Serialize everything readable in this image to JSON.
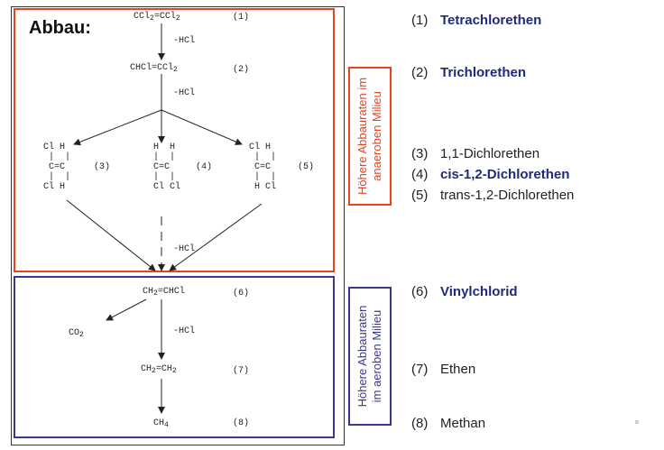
{
  "title": "Abbau:",
  "scheme": {
    "c1": {
      "a": "CCl",
      "b": "2",
      "c": "=CCl",
      "d": "2"
    },
    "c2": {
      "a": "CHCl=CCl",
      "b": "2"
    },
    "c6": {
      "a": "CH",
      "b": "2",
      "c": "=CHCl"
    },
    "co2": {
      "a": "CO",
      "b": "2"
    },
    "c7": {
      "a": "CH",
      "b": "2",
      "c": "=CH",
      "d": "2"
    },
    "c8": {
      "a": "CH",
      "b": "4"
    },
    "s3": "Cl H\n |  |\n C=C\n |  |\nCl H",
    "s4": "H  H\n|  |\nC=C\n|  |\nCl Cl",
    "s5": "Cl H\n |  |\n C=C\n |  |\n H Cl",
    "labels": [
      "(1)",
      "(2)",
      "(3)",
      "(4)",
      "(5)",
      "(6)",
      "(7)",
      "(8)"
    ],
    "hcl": "-HCl"
  },
  "zones": {
    "anaerob": [
      "Höhere Abbauraten im",
      "anaeroben Milieu"
    ],
    "aerob": [
      "Höhere Abbauraten",
      "im aeroben Milieu"
    ]
  },
  "legend": [
    {
      "num": "(1)",
      "name": "Tetrachlorethen",
      "bold": true
    },
    {
      "num": "(2)",
      "name": "Trichlorethen",
      "bold": true
    },
    {
      "num": "(3)",
      "name": "1,1-Dichlorethen",
      "bold": false
    },
    {
      "num": "(4)",
      "name": "cis-1,2-Dichlorethen",
      "bold": true
    },
    {
      "num": "(5)",
      "name": "trans-1,2-Dichlorethen",
      "bold": false
    },
    {
      "num": "(6)",
      "name": "Vinylchlorid",
      "bold": true
    },
    {
      "num": "(7)",
      "name": "Ethen",
      "bold": false
    },
    {
      "num": "(8)",
      "name": "Methan",
      "bold": false
    }
  ],
  "colors": {
    "anaerob": "#e8431c",
    "aerob": "#39398f",
    "highlight": "#1f2a7a"
  }
}
